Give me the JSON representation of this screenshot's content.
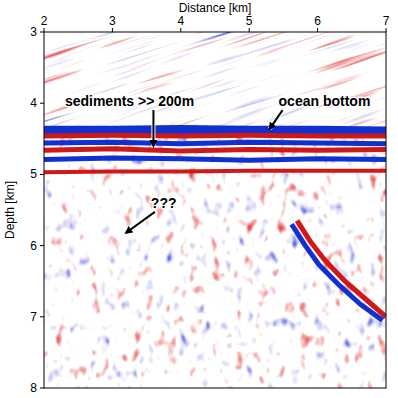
{
  "chart_data": {
    "type": "image",
    "x_label": "Distance [km]",
    "y_label": "Depth [km]",
    "xlim": [
      2,
      7
    ],
    "xticks": [
      2,
      3,
      4,
      5,
      6,
      7
    ],
    "ylim": [
      3,
      8
    ],
    "yticks": [
      3,
      4,
      5,
      6,
      7,
      8
    ],
    "reflectors": [
      {
        "color": "#1030d0",
        "x": [
          2,
          3,
          4,
          5,
          6,
          7
        ],
        "y": [
          4.38,
          4.38,
          4.37,
          4.38,
          4.38,
          4.39
        ]
      },
      {
        "color": "#d01818",
        "x": [
          2,
          3,
          4,
          5,
          6,
          7
        ],
        "y": [
          4.46,
          4.45,
          4.46,
          4.45,
          4.46,
          4.46
        ]
      },
      {
        "color": "#1030d0",
        "x": [
          2,
          3,
          4,
          5,
          6,
          7
        ],
        "y": [
          4.56,
          4.55,
          4.57,
          4.55,
          4.56,
          4.57
        ]
      },
      {
        "color": "#d01818",
        "x": [
          2,
          3,
          4,
          5,
          6,
          7
        ],
        "y": [
          4.66,
          4.64,
          4.67,
          4.65,
          4.66,
          4.65
        ]
      },
      {
        "color": "#1030d0",
        "x": [
          2,
          3,
          4,
          5,
          6,
          7
        ],
        "y": [
          4.79,
          4.77,
          4.78,
          4.8,
          4.78,
          4.79
        ]
      },
      {
        "color": "#d01818",
        "x": [
          2,
          3,
          4,
          5,
          6,
          7
        ],
        "y": [
          4.97,
          4.96,
          4.96,
          4.95,
          4.95,
          4.95
        ]
      },
      {
        "color": "#d01818",
        "x": [
          5.7,
          5.9,
          6.1,
          6.4,
          6.7,
          7.0
        ],
        "y": [
          5.65,
          5.95,
          6.2,
          6.5,
          6.75,
          7.0
        ]
      },
      {
        "color": "#1030d0",
        "x": [
          5.62,
          5.82,
          6.02,
          6.32,
          6.62,
          6.95
        ],
        "y": [
          5.7,
          6.0,
          6.27,
          6.56,
          6.82,
          7.05
        ]
      }
    ],
    "annotations": [
      {
        "text": "sediments >> 200m",
        "x": 3.25,
        "y": 3.97,
        "arrow_x": 3.6,
        "arrow_y": 4.6
      },
      {
        "text": "ocean bottom",
        "x": 6.1,
        "y": 3.97,
        "arrow_x": 5.3,
        "arrow_y": 4.36
      },
      {
        "text": "???",
        "x": 3.75,
        "y": 5.4,
        "arrow_x": 3.2,
        "arrow_y": 5.82
      }
    ]
  }
}
